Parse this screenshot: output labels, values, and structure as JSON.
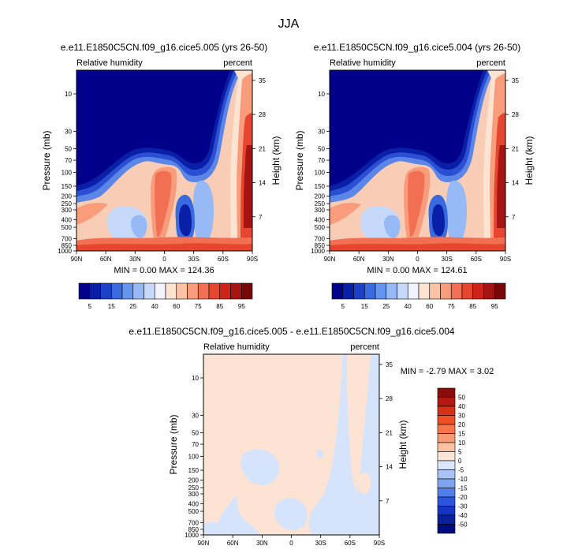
{
  "page_title": "JJA",
  "chart_data": [
    {
      "type": "heatmap",
      "title": "e.e11.E1850C5CN.f09_g16.cice5.005 (yrs 26-50)",
      "variable_label": "Relative humidity",
      "units_label": "percent",
      "xlabel": "",
      "ylabel": "Pressure (mb)",
      "y2label": "Height (km)",
      "x_ticks": [
        "90N",
        "60N",
        "30N",
        "0",
        "30S",
        "60S",
        "90S"
      ],
      "y_ticks": [
        "10",
        "30",
        "50",
        "70",
        "100",
        "150",
        "200",
        "250",
        "300",
        "400",
        "500",
        "700",
        "850",
        "1000"
      ],
      "y_tick_values": [
        10,
        30,
        50,
        70,
        100,
        150,
        200,
        250,
        300,
        400,
        500,
        700,
        850,
        1000
      ],
      "y2_ticks": [
        "35",
        "28",
        "21",
        "14",
        "7"
      ],
      "y2_tick_values": [
        35,
        28,
        21,
        14,
        7
      ],
      "ylim": [
        5,
        1000
      ],
      "stats": "MIN =   0.00  MAX = 124.36",
      "min": 0.0,
      "max": 124.36
    },
    {
      "type": "heatmap",
      "title": "e.e11.E1850C5CN.f09_g16.cice5.004 (yrs 26-50)",
      "variable_label": "Relative humidity",
      "units_label": "percent",
      "xlabel": "",
      "ylabel": "Pressure (mb)",
      "y2label": "Height (km)",
      "x_ticks": [
        "90N",
        "60N",
        "30N",
        "0",
        "30S",
        "60S",
        "90S"
      ],
      "y_ticks": [
        "10",
        "30",
        "50",
        "70",
        "100",
        "150",
        "200",
        "250",
        "300",
        "400",
        "500",
        "700",
        "850",
        "1000"
      ],
      "y_tick_values": [
        10,
        30,
        50,
        70,
        100,
        150,
        200,
        250,
        300,
        400,
        500,
        700,
        850,
        1000
      ],
      "y2_ticks": [
        "35",
        "28",
        "21",
        "14",
        "7"
      ],
      "y2_tick_values": [
        35,
        28,
        21,
        14,
        7
      ],
      "ylim": [
        5,
        1000
      ],
      "stats": "MIN =   0.00  MAX = 124.61",
      "min": 0.0,
      "max": 124.61
    },
    {
      "type": "heatmap",
      "title": "e.e11.E1850C5CN.f09_g16.cice5.005 - e.e11.E1850C5CN.f09_g16.cice5.004",
      "variable_label": "Relative humidity",
      "units_label": "percent",
      "xlabel": "",
      "ylabel": "Pressure (mb)",
      "y2label": "Height (km)",
      "x_ticks": [
        "90N",
        "60N",
        "30N",
        "0",
        "30S",
        "60S",
        "90S"
      ],
      "y_ticks": [
        "10",
        "30",
        "50",
        "70",
        "100",
        "150",
        "200",
        "250",
        "300",
        "400",
        "500",
        "700",
        "850",
        "1000"
      ],
      "y_tick_values": [
        10,
        30,
        50,
        70,
        100,
        150,
        200,
        250,
        300,
        400,
        500,
        700,
        850,
        1000
      ],
      "y2_ticks": [
        "35",
        "28",
        "21",
        "14",
        "7"
      ],
      "y2_tick_values": [
        35,
        28,
        21,
        14,
        7
      ],
      "ylim": [
        5,
        1000
      ],
      "stats": "MIN =  -2.79  MAX =   3.02",
      "min": -2.79,
      "max": 3.02
    }
  ],
  "colorbar_top": {
    "labels": [
      "5",
      "15",
      "25",
      "40",
      "60",
      "75",
      "85",
      "95"
    ],
    "colors": [
      "#00008a",
      "#0a1fa8",
      "#1c40c8",
      "#3a6ae0",
      "#6495ef",
      "#97b9f5",
      "#c6d9fb",
      "#f2f2ff",
      "#fde3d2",
      "#fbc2a6",
      "#f89c7c",
      "#f17053",
      "#e64530",
      "#cd2319",
      "#a51410",
      "#780808"
    ]
  },
  "colorbar_diff": {
    "labels": [
      "50",
      "40",
      "30",
      "20",
      "15",
      "10",
      "5",
      "0",
      "-5",
      "-10",
      "-15",
      "-20",
      "-30",
      "-40",
      "-50"
    ],
    "colors": [
      "#8b0b0b",
      "#b5180f",
      "#d63218",
      "#ee4f25",
      "#f77548",
      "#fa9a72",
      "#fcc1a2",
      "#fde3d3",
      "#d9e6fc",
      "#a9c3f6",
      "#7ea3ef",
      "#527eea",
      "#2c55df",
      "#1534c3",
      "#08209e",
      "#000b80"
    ]
  },
  "colors": {
    "deep_blue": "#00008a",
    "diff_base": "#fde3d3",
    "diff_neg": "#d6e4fb"
  }
}
